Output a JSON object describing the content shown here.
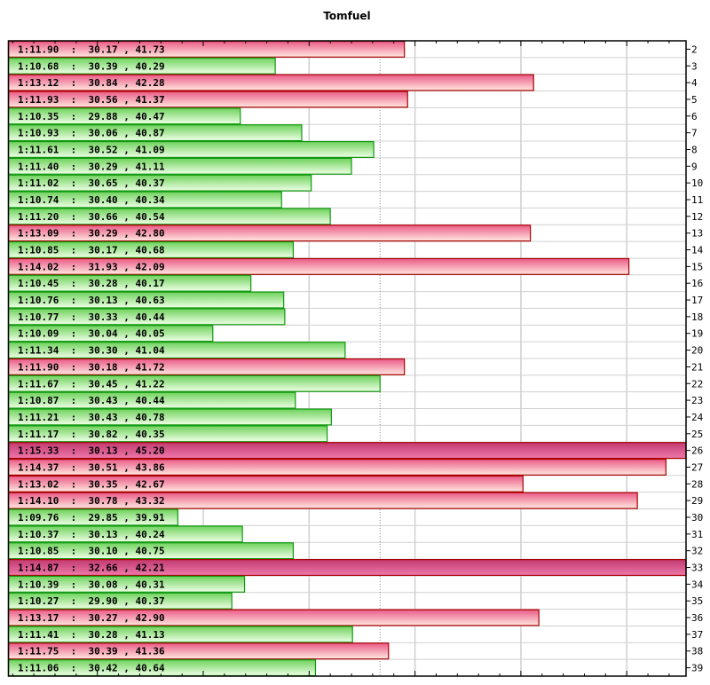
{
  "chart_data": {
    "type": "bar",
    "orientation": "horizontal",
    "title": "Tomfuel",
    "x_unit": "lap time (seconds past 1:00)",
    "xlim": [
      68.16,
      74.56
    ],
    "x_gridlines": [
      69,
      70,
      71,
      72,
      73,
      74
    ],
    "reference_line": 71.67,
    "grid": true,
    "colors": {
      "fast": "#7dd86a",
      "slow": "#ee6f92",
      "clipped": "#c8427a",
      "fast_border": "#119911",
      "slow_border": "#aa0000"
    },
    "laps": [
      {
        "lap": "2",
        "label": "1:11.90  :  30.17 , 41.73",
        "time": 71.9
      },
      {
        "lap": "3",
        "label": "1:10.68  :  30.39 , 40.29",
        "time": 70.68
      },
      {
        "lap": "4",
        "label": "1:13.12  :  30.84 , 42.28",
        "time": 73.12
      },
      {
        "lap": "5",
        "label": "1:11.93  :  30.56 , 41.37",
        "time": 71.93
      },
      {
        "lap": "6",
        "label": "1:10.35  :  29.88 , 40.47",
        "time": 70.35
      },
      {
        "lap": "7",
        "label": "1:10.93  :  30.06 , 40.87",
        "time": 70.93
      },
      {
        "lap": "8",
        "label": "1:11.61  :  30.52 , 41.09",
        "time": 71.61
      },
      {
        "lap": "9",
        "label": "1:11.40  :  30.29 , 41.11",
        "time": 71.4
      },
      {
        "lap": "10",
        "label": "1:11.02  :  30.65 , 40.37",
        "time": 71.02
      },
      {
        "lap": "11",
        "label": "1:10.74  :  30.40 , 40.34",
        "time": 70.74
      },
      {
        "lap": "12",
        "label": "1:11.20  :  30.66 , 40.54",
        "time": 71.2
      },
      {
        "lap": "13",
        "label": "1:13.09  :  30.29 , 42.80",
        "time": 73.09
      },
      {
        "lap": "14",
        "label": "1:10.85  :  30.17 , 40.68",
        "time": 70.85
      },
      {
        "lap": "15",
        "label": "1:14.02  :  31.93 , 42.09",
        "time": 74.02
      },
      {
        "lap": "16",
        "label": "1:10.45  :  30.28 , 40.17",
        "time": 70.45
      },
      {
        "lap": "17",
        "label": "1:10.76  :  30.13 , 40.63",
        "time": 70.76
      },
      {
        "lap": "18",
        "label": "1:10.77  :  30.33 , 40.44",
        "time": 70.77
      },
      {
        "lap": "19",
        "label": "1:10.09  :  30.04 , 40.05",
        "time": 70.09
      },
      {
        "lap": "20",
        "label": "1:11.34  :  30.30 , 41.04",
        "time": 71.34
      },
      {
        "lap": "21",
        "label": "1:11.90  :  30.18 , 41.72",
        "time": 71.9
      },
      {
        "lap": "22",
        "label": "1:11.67  :  30.45 , 41.22",
        "time": 71.67
      },
      {
        "lap": "23",
        "label": "1:10.87  :  30.43 , 40.44",
        "time": 70.87
      },
      {
        "lap": "24",
        "label": "1:11.21  :  30.43 , 40.78",
        "time": 71.21
      },
      {
        "lap": "25",
        "label": "1:11.17  :  30.82 , 40.35",
        "time": 71.17
      },
      {
        "lap": "26",
        "label": "1:15.33  :  30.13 , 45.20",
        "time": 75.33
      },
      {
        "lap": "27",
        "label": "1:14.37  :  30.51 , 43.86",
        "time": 74.37
      },
      {
        "lap": "28",
        "label": "1:13.02  :  30.35 , 42.67",
        "time": 73.02
      },
      {
        "lap": "29",
        "label": "1:14.10  :  30.78 , 43.32",
        "time": 74.1
      },
      {
        "lap": "30",
        "label": "1:09.76  :  29.85 , 39.91",
        "time": 69.76
      },
      {
        "lap": "31",
        "label": "1:10.37  :  30.13 , 40.24",
        "time": 70.37
      },
      {
        "lap": "32",
        "label": "1:10.85  :  30.10 , 40.75",
        "time": 70.85
      },
      {
        "lap": "33",
        "label": "1:14.87  :  32.66 , 42.21",
        "time": 74.87
      },
      {
        "lap": "34",
        "label": "1:10.39  :  30.08 , 40.31",
        "time": 70.39
      },
      {
        "lap": "35",
        "label": "1:10.27  :  29.90 , 40.37",
        "time": 70.27
      },
      {
        "lap": "36",
        "label": "1:13.17  :  30.27 , 42.90",
        "time": 73.17
      },
      {
        "lap": "37",
        "label": "1:11.41  :  30.28 , 41.13",
        "time": 71.41
      },
      {
        "lap": "38",
        "label": "1:11.75  :  30.39 , 41.36",
        "time": 71.75
      },
      {
        "lap": "39",
        "label": "1:11.06  :  30.42 , 40.64",
        "time": 71.06
      }
    ]
  }
}
